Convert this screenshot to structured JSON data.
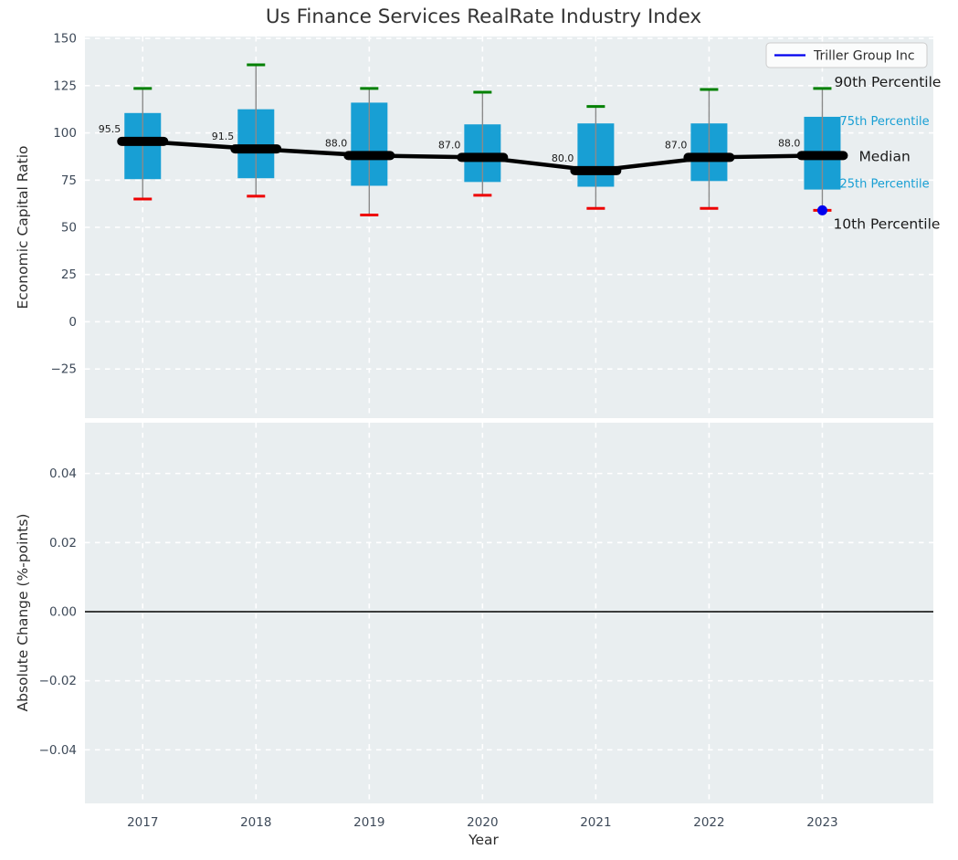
{
  "title": "Us Finance Services RealRate Industry Index",
  "xlabel": "Year",
  "legend": {
    "label": "Triller Group Inc"
  },
  "colors": {
    "box_fill": "#189fd4",
    "cap_top_green": "#008000",
    "cap_bottom_red": "#ee0000",
    "whisker_gray": "#8a8a8a",
    "median_black": "#000000",
    "company_blue": "#0000ee",
    "axes_background": "#e9eef0",
    "grid_white": "#ffffff",
    "tick_label": "#3e4a59",
    "annotation_black": "#1a1a1a",
    "annotation_cyan": "#189fd4"
  },
  "chart_data": [
    {
      "type": "boxplot",
      "ylabel": "Economic Capital Ratio",
      "categories": [
        2017,
        2018,
        2019,
        2020,
        2021,
        2022,
        2023
      ],
      "yticks": [
        150,
        125,
        100,
        75,
        50,
        25,
        0,
        -25
      ],
      "ytick_labels": [
        "150",
        "125",
        "100",
        "75",
        "50",
        "25",
        "0",
        "−25"
      ],
      "ylim": [
        -51,
        151
      ],
      "grid": true,
      "series": [
        {
          "name": "10th Percentile",
          "values": [
            65,
            66.5,
            56.5,
            67,
            60,
            60,
            59
          ]
        },
        {
          "name": "25th Percentile",
          "values": [
            75.5,
            76,
            72,
            74,
            71.5,
            74.5,
            70
          ]
        },
        {
          "name": "Median",
          "values": [
            95.5,
            91.5,
            88.0,
            87.0,
            80.0,
            87.0,
            88.0
          ]
        },
        {
          "name": "75th Percentile",
          "values": [
            110.5,
            112.5,
            116,
            104.5,
            105,
            105,
            108.5
          ]
        },
        {
          "name": "90th Percentile",
          "values": [
            123.5,
            136,
            123.5,
            121.5,
            114,
            123,
            123.5
          ]
        }
      ],
      "median_point_labels": [
        "95.5",
        "91.5",
        "88.0",
        "87.0",
        "80.0",
        "87.0",
        "88.0"
      ],
      "company_point": {
        "name": "Triller Group Inc",
        "year": 2023,
        "value": 59
      },
      "annotations": [
        {
          "text": "90th Percentile",
          "anchor": "p90",
          "style": "black"
        },
        {
          "text": "75th Percentile",
          "anchor": "p75",
          "style": "cyan"
        },
        {
          "text": "Median",
          "anchor": "median",
          "style": "black"
        },
        {
          "text": "25th Percentile",
          "anchor": "p25",
          "style": "cyan"
        },
        {
          "text": "10th Percentile",
          "anchor": "p10",
          "style": "black"
        }
      ],
      "legend_position": "upper right"
    },
    {
      "type": "line",
      "ylabel": "Absolute Change (%-points)",
      "categories": [
        2017,
        2018,
        2019,
        2020,
        2021,
        2022,
        2023
      ],
      "xtick_labels": [
        "2017",
        "2018",
        "2019",
        "2020",
        "2021",
        "2022",
        "2023"
      ],
      "yticks": [
        0.04,
        0.02,
        0.0,
        -0.02,
        -0.04
      ],
      "ytick_labels": [
        "0.04",
        "0.02",
        "0.00",
        "−0.02",
        "−0.04"
      ],
      "ylim": [
        -0.0555,
        0.0547
      ],
      "grid": true,
      "zero_line": true,
      "series": []
    }
  ]
}
